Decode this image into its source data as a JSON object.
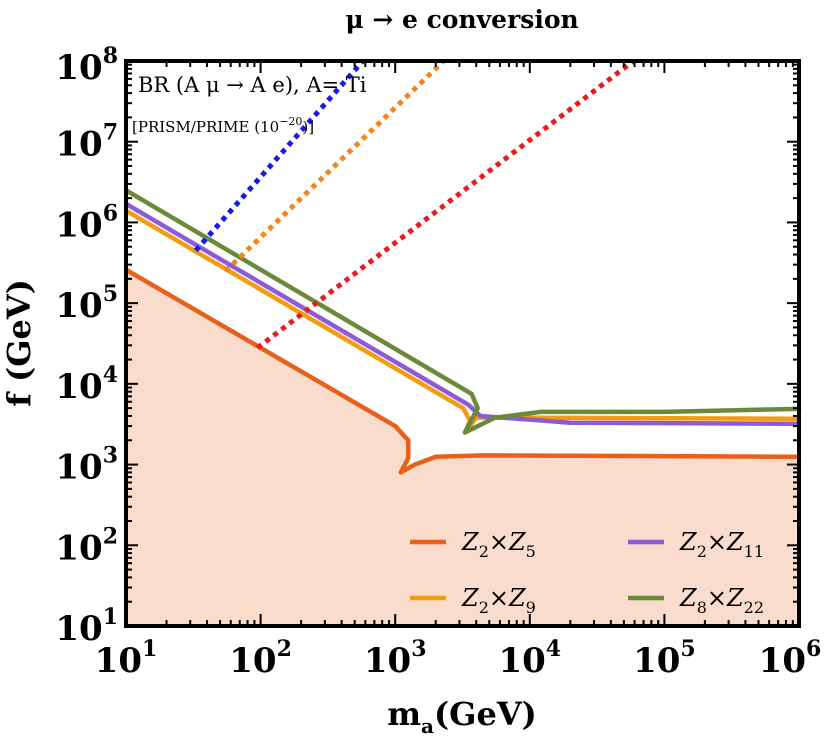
{
  "chart_data": {
    "type": "line",
    "title": "μ → e conversion",
    "xlabel": "m_a(GeV)",
    "ylabel": "f (GeV)",
    "xscale": "log",
    "yscale": "log",
    "xlim": [
      10,
      1000000
    ],
    "ylim": [
      10,
      100000000
    ],
    "x_ticks": [
      {
        "value": 10,
        "base": "10",
        "exp": "1"
      },
      {
        "value": 100,
        "base": "10",
        "exp": "2"
      },
      {
        "value": 1000,
        "base": "10",
        "exp": "3"
      },
      {
        "value": 10000,
        "base": "10",
        "exp": "4"
      },
      {
        "value": 100000,
        "base": "10",
        "exp": "5"
      },
      {
        "value": 1000000,
        "base": "10",
        "exp": "6"
      }
    ],
    "y_ticks": [
      {
        "value": 10,
        "base": "10",
        "exp": "1"
      },
      {
        "value": 100,
        "base": "10",
        "exp": "2"
      },
      {
        "value": 1000,
        "base": "10",
        "exp": "3"
      },
      {
        "value": 10000,
        "base": "10",
        "exp": "4"
      },
      {
        "value": 100000,
        "base": "10",
        "exp": "5"
      },
      {
        "value": 1000000,
        "base": "10",
        "exp": "6"
      },
      {
        "value": 10000000,
        "base": "10",
        "exp": "7"
      },
      {
        "value": 100000000,
        "base": "10",
        "exp": "8"
      }
    ],
    "annotations": {
      "process": "BR (A μ → A e), A= Ti",
      "experiment": "[PRISM/PRIME (10",
      "experiment_exp": "−20",
      "experiment_end": ")]"
    },
    "excluded_region": {
      "color": "#f9dccb",
      "boundary_series": "Z2×Z5"
    },
    "series": [
      {
        "name": "Z2×Z5",
        "legend_main": "Z",
        "legend_sub1": "2",
        "legend_times": "×",
        "legend_main2": "Z",
        "legend_sub2": "5",
        "color": "#e8601c",
        "style": "solid",
        "points": [
          [
            10,
            260000
          ],
          [
            1000,
            3000
          ],
          [
            1250,
            2000
          ],
          [
            1250,
            1200
          ],
          [
            1100,
            800
          ],
          [
            1400,
            1000
          ],
          [
            2000,
            1250
          ],
          [
            4500,
            1300
          ],
          [
            1000000,
            1250
          ]
        ]
      },
      {
        "name": "Z2×Z9",
        "legend_main": "Z",
        "legend_sub1": "2",
        "legend_times": "×",
        "legend_main2": "Z",
        "legend_sub2": "9",
        "color": "#f39c12",
        "style": "solid",
        "points": [
          [
            10,
            1400000
          ],
          [
            3200,
            5000
          ],
          [
            3600,
            3500
          ],
          [
            3300,
            2500
          ],
          [
            4000,
            3800
          ],
          [
            15000,
            3800
          ],
          [
            1000000,
            3700
          ]
        ]
      },
      {
        "name": "Z2×Z11",
        "legend_main": "Z",
        "legend_sub1": "2",
        "legend_times": "×",
        "legend_main2": "Z",
        "legend_sub2": "11",
        "color": "#8e5bd6",
        "style": "solid",
        "points": [
          [
            10,
            1700000
          ],
          [
            3500,
            5500
          ],
          [
            4300,
            4000
          ],
          [
            10000,
            3600
          ],
          [
            20000,
            3300
          ],
          [
            1000000,
            3200
          ]
        ]
      },
      {
        "name": "Z8×Z22",
        "legend_main": "Z",
        "legend_sub1": "8",
        "legend_times": "×",
        "legend_main2": "Z",
        "legend_sub2": "22",
        "color": "#6a8a3a",
        "style": "solid",
        "points": [
          [
            10,
            2500000
          ],
          [
            3700,
            7500
          ],
          [
            4100,
            5000
          ],
          [
            3300,
            2500
          ],
          [
            5500,
            3800
          ],
          [
            12000,
            4500
          ],
          [
            100000,
            4500
          ],
          [
            1000000,
            4900
          ]
        ]
      },
      {
        "name": "Z2×Z11 dotted",
        "color": "#1a1ae6",
        "style": "dotted",
        "points": [
          [
            33,
            450000
          ],
          [
            575,
            100000000
          ]
        ]
      },
      {
        "name": "Z2×Z9 dotted",
        "color": "#f5841f",
        "style": "dotted",
        "points": [
          [
            55,
            250000
          ],
          [
            2290,
            100000000
          ]
        ]
      },
      {
        "name": "Z2×Z5 dotted",
        "color": "#e81c1c",
        "style": "dotted",
        "points": [
          [
            95,
            28000
          ],
          [
            58900,
            100000000
          ]
        ]
      }
    ],
    "legend": {
      "placement": "bottom-right",
      "columns": 2,
      "order": [
        "Z2×Z5",
        "Z2×Z11",
        "Z2×Z9",
        "Z8×Z22"
      ]
    }
  }
}
